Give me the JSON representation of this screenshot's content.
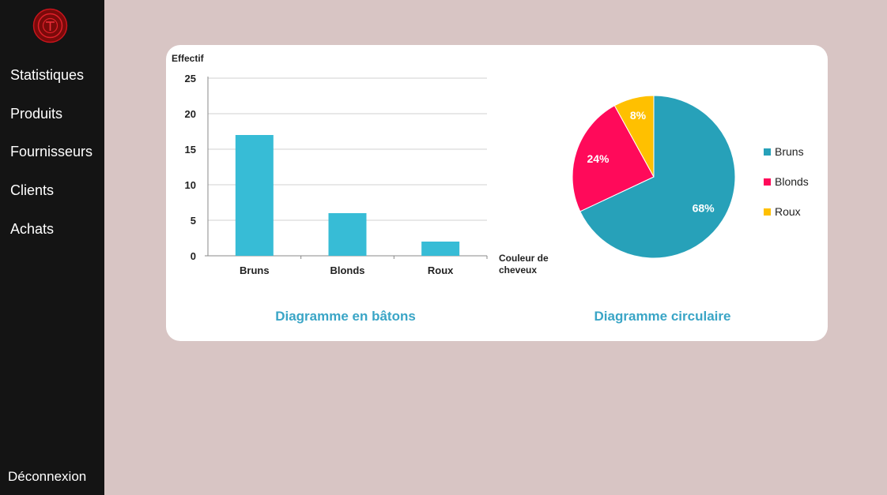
{
  "sidebar": {
    "logo_icon": "red-circular-emblem-icon",
    "items": [
      {
        "label": "Statistiques"
      },
      {
        "label": "Produits"
      },
      {
        "label": "Fournisseurs"
      },
      {
        "label": "Clients"
      },
      {
        "label": "Achats"
      }
    ],
    "logout_label": "Déconnexion"
  },
  "colors": {
    "sidebar_bg": "#141414",
    "page_bg": "#d8c5c4",
    "bar": "#37bcd6",
    "bruns": "#27a1b9",
    "blonds": "#ff0a5a",
    "roux": "#ffc000",
    "title": "#3aa5c6"
  },
  "chart_data": [
    {
      "type": "bar",
      "title": "Diagramme en bâtons",
      "ylabel": "Effectif",
      "xlabel": "Couleur de cheveux",
      "categories": [
        "Bruns",
        "Blonds",
        "Roux"
      ],
      "values": [
        17,
        6,
        2
      ],
      "ylim": [
        0,
        25
      ],
      "yticks": [
        "0",
        "5",
        "10",
        "15",
        "20",
        "25"
      ],
      "grid": true
    },
    {
      "type": "pie",
      "title": "Diagramme circulaire",
      "categories": [
        "Bruns",
        "Blonds",
        "Roux"
      ],
      "values": [
        68,
        24,
        8
      ],
      "labels": [
        "68%",
        "24%",
        "8%"
      ],
      "legend": "right"
    }
  ]
}
